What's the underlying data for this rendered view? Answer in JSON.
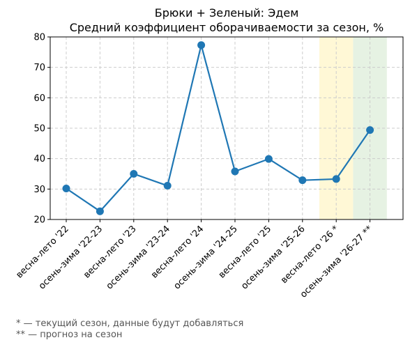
{
  "chart_data": {
    "type": "line",
    "title": "Брюки + Зеленый: Эдем",
    "subtitle": "Средний коэффициент оборачиваемости за сезон, %",
    "xlabel": "",
    "ylabel": "",
    "categories": [
      "весна-лето '22",
      "осень-зима '22-23",
      "весна-лето '23",
      "осень-зима '23-24",
      "весна-лето '24",
      "осень-зима '24-25",
      "весна-лето '25",
      "осень-зима '25-26",
      "весна-лето '26 *",
      "осень-зима '26-27 **"
    ],
    "series": [
      {
        "values": [
          30.2,
          22.7,
          35.0,
          31.1,
          77.3,
          35.8,
          39.9,
          32.9,
          33.3,
          49.4
        ]
      }
    ],
    "ylim": [
      20,
      80
    ],
    "yticks": [
      20,
      30,
      40,
      50,
      60,
      70,
      80
    ],
    "grid": true,
    "legend": "none",
    "highlights": [
      {
        "category_index": 8,
        "color": "#fff8d6"
      },
      {
        "category_index": 9,
        "color": "#e6f2e3"
      }
    ],
    "line_color": "#1f77b4"
  },
  "footnotes": [
    "* — текущий сезон, данные будут добавляться",
    "** — прогноз на сезон"
  ]
}
